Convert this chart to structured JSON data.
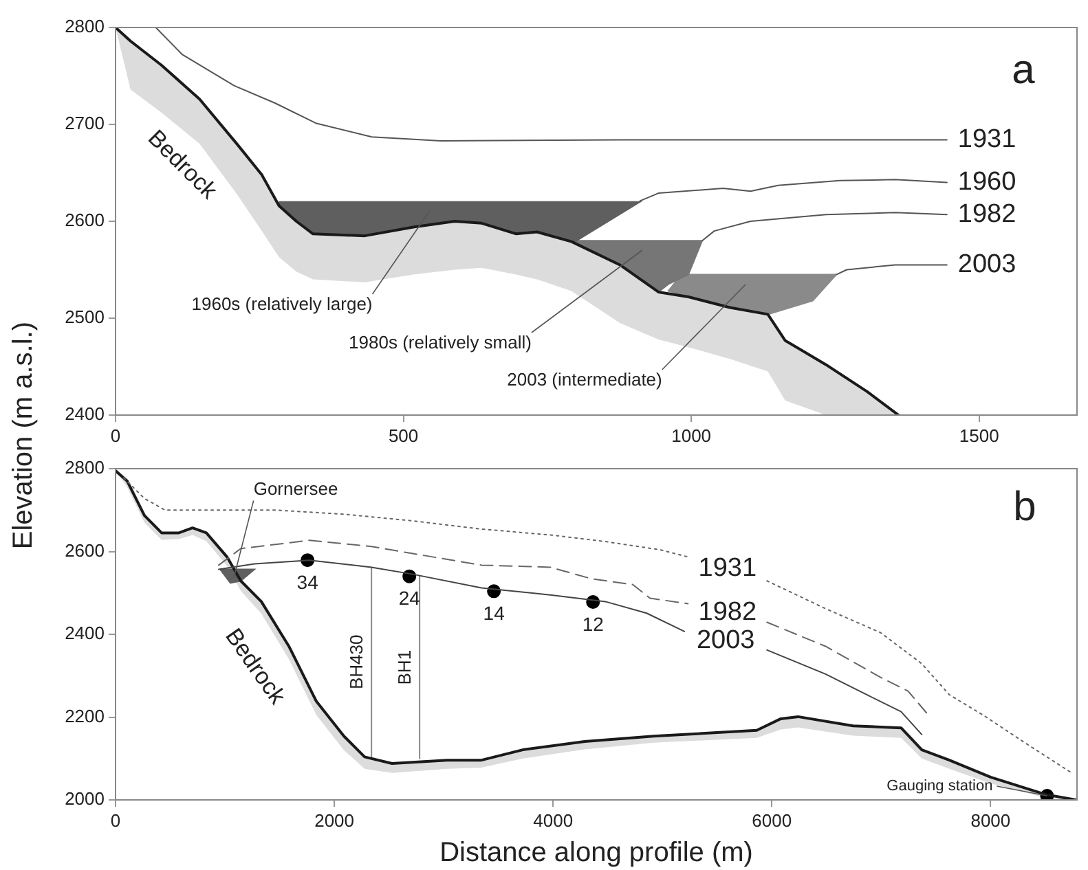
{
  "chart_data": [
    {
      "type": "line",
      "ylabel": "Elevation (m a.s.l.)",
      "xlim": [
        0,
        1670
      ],
      "xticks": [
        0,
        500,
        1000,
        1500
      ],
      "ylim": [
        2400,
        2800
      ],
      "yticks": [
        2400,
        2500,
        2600,
        2700,
        2800
      ],
      "grid": false,
      "legend": false,
      "annotations": [
        "1960s (relatively large)",
        "1980s (relatively small)",
        "2003 (intermediate)",
        "a"
      ],
      "series": [
        {
          "name": "1931",
          "type": "line",
          "color": "#555555",
          "x": [
            70,
            116,
            206,
            277,
            349,
            445,
            565,
            876,
            1444
          ],
          "values": [
            2800,
            2772,
            2740,
            2722,
            2701,
            2687,
            2683,
            2684,
            2684
          ]
        },
        {
          "name": "1960",
          "type": "line",
          "color": "#555555",
          "x": [
            911,
            943,
            1055,
            1103,
            1151,
            1258,
            1354,
            1444
          ],
          "values": [
            2621,
            2629,
            2634,
            2631,
            2637,
            2642,
            2643,
            2640
          ]
        },
        {
          "name": "1982",
          "type": "line",
          "color": "#555555",
          "x": [
            1019,
            1040,
            1103,
            1234,
            1354,
            1444
          ],
          "values": [
            2580,
            2590,
            2600,
            2607,
            2609,
            2607
          ]
        },
        {
          "name": "2003",
          "type": "line",
          "color": "#555555",
          "x": [
            1252,
            1270,
            1354,
            1444
          ],
          "values": [
            2545,
            2550,
            2555,
            2555
          ]
        },
        {
          "name": "Bedrock",
          "type": "line",
          "color": "#1a1a1a",
          "x": [
            0,
            26,
            80,
            146,
            212,
            254,
            284,
            314,
            343,
            433,
            517,
            589,
            636,
            696,
            732,
            792,
            876,
            943,
            995,
            1067,
            1133,
            1163,
            1234,
            1306,
            1360
          ],
          "values": [
            2800,
            2786,
            2761,
            2726,
            2679,
            2648,
            2616,
            2600,
            2587,
            2585,
            2594,
            2600,
            2598,
            2587,
            2589,
            2579,
            2555,
            2527,
            2522,
            2511,
            2504,
            2477,
            2452,
            2424,
            2400
          ],
          "upper": [
            2800,
            2786,
            2761,
            2726,
            2679,
            2648,
            2616,
            2600,
            2587,
            2585,
            2594,
            2600,
            2598,
            2587,
            2589,
            2579,
            2555,
            2527,
            2522,
            2511,
            2504,
            2477,
            2452,
            2424,
            2400
          ],
          "lower": [
            2800,
            2736,
            2712,
            2680,
            2627,
            2590,
            2563,
            2548,
            2540,
            2537,
            2545,
            2550,
            2552,
            2545,
            2540,
            2528,
            2495,
            2478,
            2470,
            2458,
            2445,
            2415,
            2400,
            2400,
            2400
          ]
        },
        {
          "type": "area",
          "color": "#5f5f5f",
          "x": [
            284,
            911,
            798,
            732,
            696,
            636,
            589,
            517,
            433,
            343,
            314,
            284,
            284
          ],
          "values": [
            2620,
            2620,
            2579,
            2589,
            2587,
            2598,
            2600,
            2594,
            2585,
            2587,
            2600,
            2616,
            2620
          ]
        },
        {
          "type": "area",
          "color": "#767676",
          "x": [
            798,
            1019,
            995,
            960,
            943,
            876,
            798,
            798
          ],
          "values": [
            2580,
            2580,
            2545,
            2535,
            2527,
            2555,
            2578,
            2580
          ]
        },
        {
          "type": "area",
          "color": "#8a8a8a",
          "x": [
            983,
            1252,
            1211,
            1133,
            1067,
            995,
            960,
            983
          ],
          "values": [
            2545,
            2545,
            2518,
            2504,
            2511,
            2522,
            2528,
            2545
          ]
        }
      ]
    },
    {
      "type": "line",
      "xlabel": "Distance along profile (m)",
      "xlim": [
        0,
        8790
      ],
      "xticks": [
        0,
        2000,
        4000,
        6000,
        8000
      ],
      "ylim": [
        2000,
        2800
      ],
      "yticks": [
        2000,
        2200,
        2400,
        2600,
        2800
      ],
      "grid": false,
      "legend": false,
      "annotations": [
        {
          "text": "Gornersee",
          "x": 1082,
          "y": 2537
        },
        {
          "text": "Gauging station",
          "x": 8516,
          "y": 2010
        },
        "b",
        {
          "text": "34",
          "x": 1755,
          "y": 2579
        },
        {
          "text": "24",
          "x": 2686,
          "y": 2540
        },
        {
          "text": "14",
          "x": 3459,
          "y": 2504
        },
        {
          "text": "12",
          "x": 4365,
          "y": 2478
        }
      ],
      "series": [
        {
          "name": "1931",
          "type": "line",
          "line_style": "dotted",
          "color": "#666666",
          "x": [
            75,
            264,
            453,
            1459,
            2088,
            2717,
            3346,
            3975,
            4478,
            4981,
            5233,
            5600,
            5956,
            6491,
            6994,
            7371,
            7623,
            7937,
            8314,
            8755
          ],
          "values": [
            2778,
            2728,
            2700,
            2700,
            2690,
            2674,
            2654,
            2640,
            2624,
            2604,
            2587,
            null,
            2529,
            2462,
            2404,
            2329,
            2254,
            2204,
            2138,
            2063
          ]
        },
        {
          "name": "1982",
          "type": "line",
          "line_style": "dashed",
          "color": "#666666",
          "x": [
            943,
            1145,
            1774,
            2340,
            2717,
            3346,
            3975,
            4352,
            4730,
            4887,
            5233,
            5600,
            5956,
            6491,
            6994,
            7245,
            7434
          ],
          "values": [
            2567,
            2607,
            2627,
            2612,
            2595,
            2567,
            2562,
            2534,
            2520,
            2487,
            2474,
            null,
            2429,
            2371,
            2296,
            2263,
            2204
          ]
        },
        {
          "name": "2003",
          "type": "line",
          "line_style": "solid",
          "color": "#444444",
          "x": [
            943,
            1270,
            1774,
            2340,
            2717,
            3346,
            3975,
            4478,
            4855,
            5201,
            5600,
            5956,
            6491,
            6868,
            7182,
            7371
          ],
          "values": [
            2557,
            2570,
            2579,
            2562,
            2545,
            2512,
            2495,
            2479,
            2451,
            2407,
            null,
            2362,
            2304,
            2254,
            2213,
            2158
          ]
        },
        {
          "name": "Bedrock",
          "type": "line",
          "color": "#1a1a1a",
          "x": [
            0,
            107,
            264,
            421,
            579,
            704,
            830,
            1019,
            1145,
            1333,
            1585,
            1836,
            2088,
            2277,
            2528,
            3031,
            3346,
            3723,
            4289,
            4918,
            5862,
            6082,
            6239,
            6742,
            7182,
            7371,
            7623,
            8000,
            8503,
            8780
          ],
          "values": [
            2795,
            2770,
            2687,
            2645,
            2645,
            2657,
            2645,
            2587,
            2529,
            2479,
            2371,
            2238,
            2154,
            2104,
            2088,
            2096,
            2096,
            2121,
            2141,
            2154,
            2168,
            2196,
            2201,
            2179,
            2174,
            2121,
            2096,
            2055,
            2013,
            2000
          ],
          "upper": [
            2795,
            2770,
            2687,
            2645,
            2645,
            2657,
            2645,
            2587,
            2529,
            2479,
            2371,
            2238,
            2154,
            2104,
            2088,
            2096,
            2096,
            2121,
            2141,
            2154,
            2168,
            2196,
            2201,
            2179,
            2174,
            2121,
            2096,
            2055,
            2013,
            2000
          ],
          "lower": [
            2795,
            2755,
            2670,
            2628,
            2630,
            2640,
            2625,
            2565,
            2505,
            2450,
            2340,
            2205,
            2120,
            2075,
            2065,
            2075,
            2078,
            2100,
            2122,
            2138,
            2150,
            2170,
            2175,
            2155,
            2150,
            2100,
            2075,
            2040,
            2005,
            2000
          ]
        },
        {
          "name": "BH430",
          "type": "line",
          "color": "#888888",
          "x": [
            2340,
            2340
          ],
          "values": [
            2562,
            2104
          ]
        },
        {
          "name": "BH1",
          "type": "line",
          "color": "#888888",
          "x": [
            2780,
            2780
          ],
          "values": [
            2540,
            2100
          ]
        },
        {
          "type": "area",
          "color": "#5f5f5f",
          "x": [
            956,
            1270,
            1145,
            1050,
            956
          ],
          "values": [
            2557,
            2557,
            2529,
            2524,
            2557
          ]
        },
        {
          "type": "scatter",
          "color": "#000000",
          "x": [
            1755,
            2686,
            3459,
            4365
          ],
          "values": [
            2579,
            2540,
            2504,
            2478
          ]
        },
        {
          "type": "scatter",
          "color": "#000000",
          "x": [
            8516
          ],
          "values": [
            2010
          ]
        }
      ]
    }
  ]
}
